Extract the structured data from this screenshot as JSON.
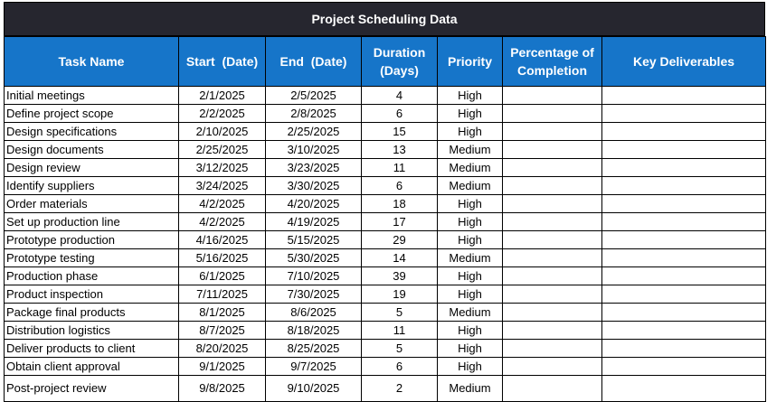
{
  "title": "Project Scheduling Data",
  "headers": [
    "Task Name",
    "Start  (Date)",
    "End  (Date)",
    "Duration (Days)",
    "Priority",
    "Percentage of Completion",
    "Key Deliverables"
  ],
  "rows": [
    [
      "Initial meetings",
      "2/1/2025",
      "2/5/2025",
      "4",
      "High",
      "",
      ""
    ],
    [
      "Define project scope",
      "2/2/2025",
      "2/8/2025",
      "6",
      "High",
      "",
      ""
    ],
    [
      "Design specifications",
      "2/10/2025",
      "2/25/2025",
      "15",
      "High",
      "",
      ""
    ],
    [
      "Design documents",
      "2/25/2025",
      "3/10/2025",
      "13",
      "Medium",
      "",
      ""
    ],
    [
      "Design review",
      "3/12/2025",
      "3/23/2025",
      "11",
      "Medium",
      "",
      ""
    ],
    [
      "Identify suppliers",
      "3/24/2025",
      "3/30/2025",
      "6",
      "Medium",
      "",
      ""
    ],
    [
      "Order materials",
      "4/2/2025",
      "4/20/2025",
      "18",
      "High",
      "",
      ""
    ],
    [
      "Set up production line",
      "4/2/2025",
      "4/19/2025",
      "17",
      "High",
      "",
      ""
    ],
    [
      "Prototype production",
      "4/16/2025",
      "5/15/2025",
      "29",
      "High",
      "",
      ""
    ],
    [
      "Prototype testing",
      "5/16/2025",
      "5/30/2025",
      "14",
      "Medium",
      "",
      ""
    ],
    [
      "Production phase",
      "6/1/2025",
      "7/10/2025",
      "39",
      "High",
      "",
      ""
    ],
    [
      "Product inspection",
      "7/11/2025",
      "7/30/2025",
      "19",
      "High",
      "",
      ""
    ],
    [
      "Package final products",
      "8/1/2025",
      "8/6/2025",
      "5",
      "Medium",
      "",
      ""
    ],
    [
      "Distribution logistics",
      "8/7/2025",
      "8/18/2025",
      "11",
      "High",
      "",
      ""
    ],
    [
      "Deliver products to client",
      "8/20/2025",
      "8/25/2025",
      "5",
      "High",
      "",
      ""
    ],
    [
      "Obtain client approval",
      "9/1/2025",
      "9/7/2025",
      "6",
      "High",
      "",
      ""
    ],
    [
      "Post-project review",
      "9/8/2025",
      "9/10/2025",
      "2",
      "Medium",
      "",
      ""
    ]
  ],
  "colors": {
    "title_bg": "#26262f",
    "header_bg": "#1675c9",
    "header_text": "#ffffff"
  }
}
